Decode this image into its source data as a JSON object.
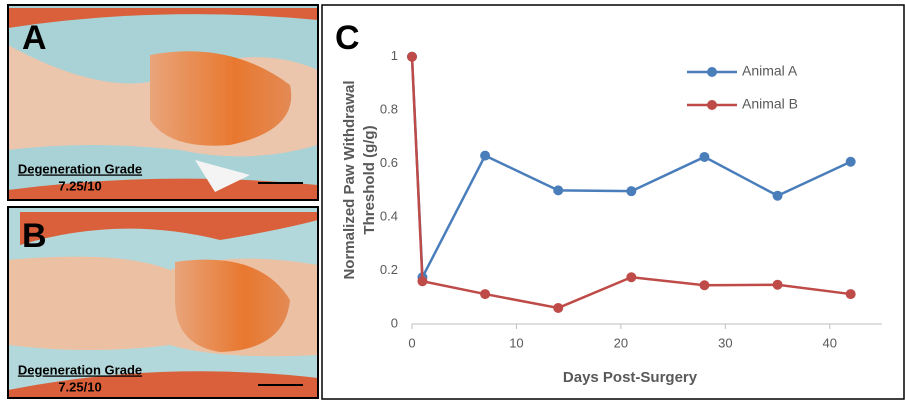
{
  "panels": [
    {
      "label": "A",
      "caption": "Degeneration Grade",
      "grade": "7.25/10"
    },
    {
      "label": "B",
      "caption": "Degeneration Grade",
      "grade": "7.25/10"
    }
  ],
  "chart_data": {
    "type": "line",
    "panel_label": "C",
    "xlabel": "Days Post-Surgery",
    "ylabel": [
      "Normalized Paw Withdrawal",
      "Threshold (g/g)"
    ],
    "x": [
      0,
      1,
      7,
      14,
      21,
      28,
      35,
      42
    ],
    "series": [
      {
        "name": "Animal A",
        "color": "#4a7ebb",
        "values": [
          1,
          0.175,
          0.63,
          0.5,
          0.497,
          0.625,
          0.48,
          0.607
        ]
      },
      {
        "name": "Animal B",
        "color": "#be4b48",
        "values": [
          1,
          0.16,
          0.112,
          0.06,
          0.175,
          0.145,
          0.147,
          0.112
        ]
      }
    ],
    "xlim": [
      0,
      45
    ],
    "ylim": [
      0,
      1.1
    ],
    "xticks": [
      0,
      10,
      20,
      30,
      40
    ],
    "yticks": [
      0,
      0.2,
      0.4,
      0.6,
      0.8,
      1
    ],
    "grid": false,
    "legend": "top-right"
  }
}
